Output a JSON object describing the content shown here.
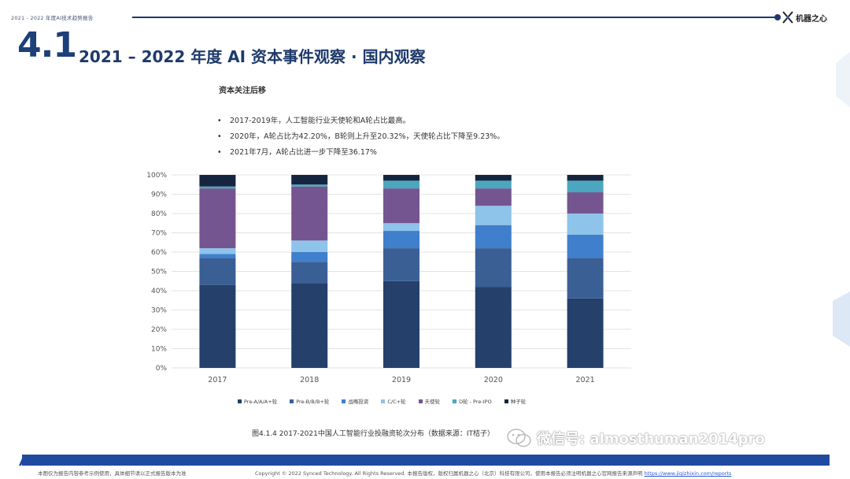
{
  "header": {
    "doc_title": "2021 - 2022 年度AI技术趋势报告",
    "logo_text": "机器之心"
  },
  "section": {
    "number": "4.1",
    "title": "2021 – 2022 年度 AI 资本事件观察 · 国内观察"
  },
  "content": {
    "subhead": "资本关注后移",
    "bullets": [
      "2017-2019年，人工智能行业天使轮和A轮占比最高。",
      "2020年，A轮占比为42.20%，B轮则上升至20.32%，天使轮占比下降至9.23%。",
      "2021年7月，A轮占比进一步下降至36.17%"
    ]
  },
  "chart_data": {
    "type": "bar",
    "stacked": true,
    "categories": [
      "2017",
      "2018",
      "2019",
      "2020",
      "2021"
    ],
    "ylim": [
      0,
      100
    ],
    "yticks": [
      "0%",
      "10%",
      "20%",
      "30%",
      "40%",
      "50%",
      "60%",
      "70%",
      "80%",
      "90%",
      "100%"
    ],
    "grid": true,
    "legend_position": "bottom",
    "series": [
      {
        "name": "Pre-A/A/A+轮",
        "color": "#24406b",
        "values": [
          43,
          44,
          45,
          42,
          36
        ]
      },
      {
        "name": "Pre-B/B/B+轮",
        "color": "#3a5f95",
        "values": [
          14,
          11,
          17,
          20,
          21
        ]
      },
      {
        "name": "战略投资",
        "color": "#3f7fcc",
        "values": [
          2,
          5,
          9,
          12,
          12
        ]
      },
      {
        "name": "C/C+轮",
        "color": "#8ec3ea",
        "values": [
          3,
          6,
          4,
          10,
          11
        ]
      },
      {
        "name": "天使轮",
        "color": "#755590",
        "values": [
          31,
          28,
          18,
          9,
          11
        ]
      },
      {
        "name": "D轮 - Pre-IPO",
        "color": "#4aa7bf",
        "values": [
          1,
          1,
          4,
          4,
          6
        ]
      },
      {
        "name": "种子轮",
        "color": "#16253f",
        "values": [
          6,
          5,
          3,
          3,
          3
        ]
      }
    ]
  },
  "caption": "图4.1.4 2017-2021中国人工智能行业投融资轮次分布（数据来源：IT桔子）",
  "watermark": "微信号: almosthuman2014pro",
  "footer": {
    "left": "本图仅为报告内容参考示例使用，具体细节请以正式报告版本为准",
    "right": "Copyright © 2022 Synced Technology. All Rights Reserved. 本报告版权，版权归属机器之心（北京）科技有限公司，使用本报告必须注明机器之心官网报告来源声明",
    "link": "https://www.jiqizhixin.com/reports"
  }
}
